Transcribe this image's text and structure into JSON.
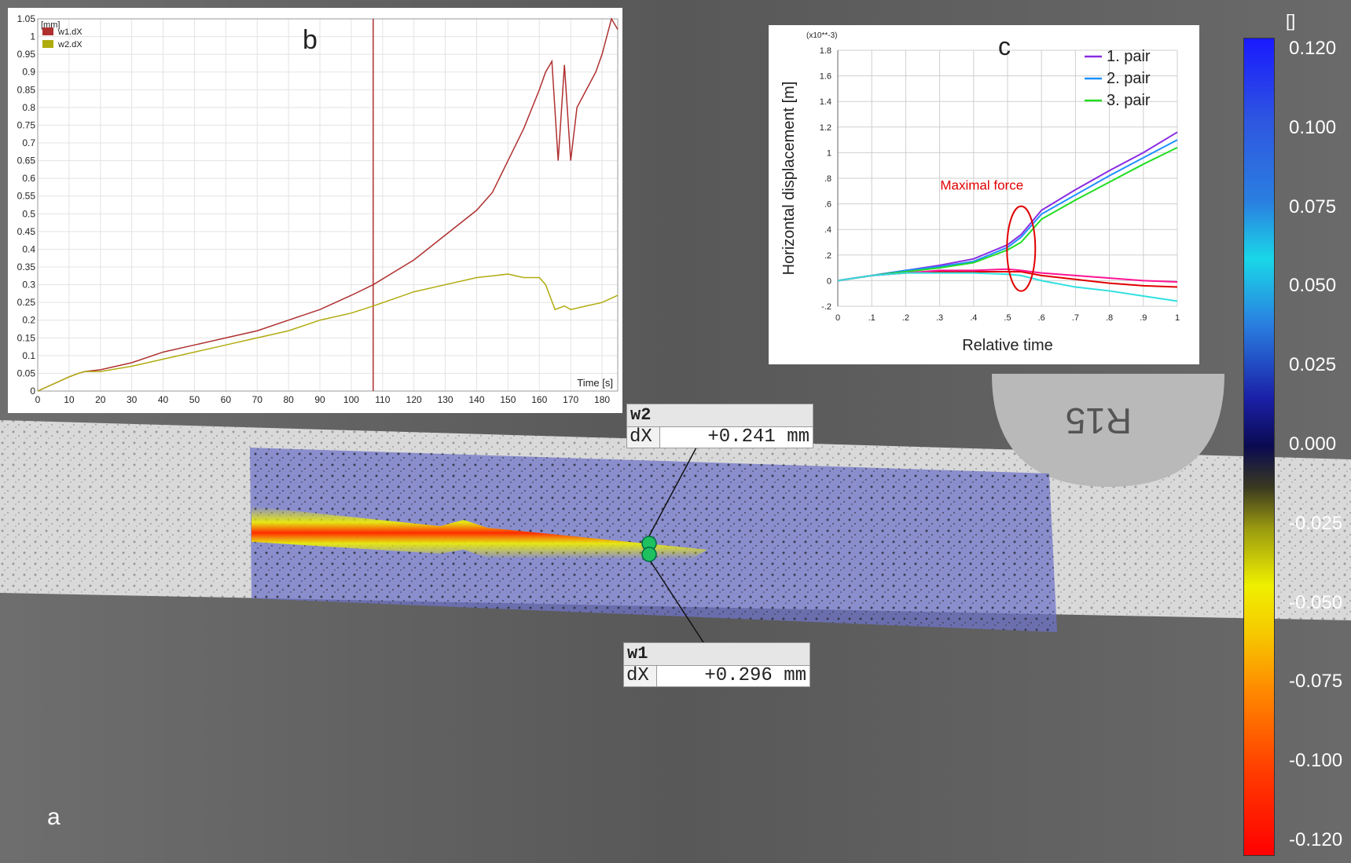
{
  "panel_a": {
    "letter": "a",
    "mark": "R15",
    "colorbar": {
      "unit": "[]",
      "ticks": [
        "0.120",
        "0.100",
        "0.075",
        "0.050",
        "0.025",
        "0.000",
        "-0.025",
        "-0.050",
        "-0.075",
        "-0.100",
        "-0.120"
      ]
    },
    "probes": [
      {
        "name": "w2",
        "quantity": "dX",
        "value": "+0.241 mm"
      },
      {
        "name": "w1",
        "quantity": "dX",
        "value": "+0.296 mm"
      }
    ]
  },
  "chart_data": [
    {
      "panel": "b",
      "type": "line",
      "ylabel": "[mm]",
      "xlabel": "Time [s]",
      "xlim": [
        0,
        185
      ],
      "ylim": [
        0,
        1.05
      ],
      "xticks": [
        "0",
        "10",
        "20",
        "30",
        "40",
        "50",
        "60",
        "70",
        "80",
        "90",
        "100",
        "110",
        "120",
        "130",
        "140",
        "150",
        "160",
        "170",
        "180"
      ],
      "yticks": [
        "0",
        "0.05",
        "0.1",
        "0.15",
        "0.2",
        "0.25",
        "0.3",
        "0.35",
        "0.4",
        "0.45",
        "0.5",
        "0.55",
        "0.6",
        "0.65",
        "0.7",
        "0.75",
        "0.8",
        "0.85",
        "0.9",
        "0.95",
        "1",
        "1.05"
      ],
      "vline_x": 107,
      "grid": true,
      "legend": "top-left",
      "series": [
        {
          "name": "w1.dX",
          "color": "#b03030",
          "x": [
            0,
            10,
            13,
            15,
            20,
            30,
            40,
            50,
            60,
            70,
            80,
            90,
            100,
            107,
            120,
            130,
            140,
            145,
            150,
            155,
            160,
            162,
            164,
            166,
            168,
            170,
            172,
            175,
            178,
            180,
            183,
            185
          ],
          "y": [
            0,
            0.04,
            0.05,
            0.055,
            0.06,
            0.08,
            0.11,
            0.13,
            0.15,
            0.17,
            0.2,
            0.23,
            0.27,
            0.3,
            0.37,
            0.44,
            0.51,
            0.56,
            0.65,
            0.74,
            0.85,
            0.9,
            0.93,
            0.65,
            0.92,
            0.65,
            0.8,
            0.85,
            0.9,
            0.95,
            1.05,
            1.02
          ]
        },
        {
          "name": "w2.dX",
          "color": "#b0ac10",
          "x": [
            0,
            10,
            13,
            15,
            20,
            30,
            40,
            50,
            60,
            70,
            80,
            90,
            100,
            107,
            120,
            130,
            140,
            150,
            155,
            160,
            162,
            165,
            168,
            170,
            175,
            180,
            185
          ],
          "y": [
            0,
            0.04,
            0.05,
            0.055,
            0.055,
            0.07,
            0.09,
            0.11,
            0.13,
            0.15,
            0.17,
            0.2,
            0.22,
            0.24,
            0.28,
            0.3,
            0.32,
            0.33,
            0.32,
            0.32,
            0.3,
            0.23,
            0.24,
            0.23,
            0.24,
            0.25,
            0.27
          ]
        }
      ]
    },
    {
      "panel": "c",
      "type": "line",
      "ylabel": "Horizontal displacement [m]",
      "xlabel": "Relative time",
      "scale_note": "(x10**-3)",
      "xlim": [
        0,
        1
      ],
      "ylim": [
        -0.2,
        1.8
      ],
      "xticks": [
        "0",
        ".1",
        ".2",
        ".3",
        ".4",
        ".5",
        ".6",
        ".7",
        ".8",
        ".9",
        "1"
      ],
      "yticks": [
        "1.8",
        "1.6",
        "1.4",
        "1.2",
        "1",
        ".8",
        ".6",
        ".4",
        ".2",
        "0",
        "-.2"
      ],
      "annotation": "Maximal force",
      "annotation_x": 0.54,
      "grid": true,
      "legend": "top-right",
      "legend_entries": [
        {
          "label": "1. pair",
          "color": "#8a2be2"
        },
        {
          "label": "2. pair",
          "color": "#1e90ff"
        },
        {
          "label": "3. pair",
          "color": "#22dd22"
        }
      ],
      "series": [
        {
          "label": "1. pair",
          "color": "#8a2be2",
          "x": [
            0,
            0.1,
            0.2,
            0.3,
            0.4,
            0.5,
            0.54,
            0.6,
            0.7,
            0.8,
            0.9,
            1
          ],
          "y": [
            0,
            0.04,
            0.08,
            0.12,
            0.17,
            0.28,
            0.36,
            0.55,
            0.71,
            0.86,
            1.0,
            1.16
          ]
        },
        {
          "label": "2. pair",
          "color": "#1e90ff",
          "x": [
            0,
            0.1,
            0.2,
            0.3,
            0.4,
            0.5,
            0.54,
            0.6,
            0.7,
            0.8,
            0.9,
            1
          ],
          "y": [
            0,
            0.04,
            0.08,
            0.11,
            0.15,
            0.26,
            0.34,
            0.52,
            0.67,
            0.82,
            0.96,
            1.1
          ]
        },
        {
          "label": "3. pair",
          "color": "#22dd22",
          "x": [
            0,
            0.1,
            0.2,
            0.3,
            0.4,
            0.5,
            0.54,
            0.6,
            0.7,
            0.8,
            0.9,
            1
          ],
          "y": [
            0,
            0.04,
            0.07,
            0.1,
            0.14,
            0.24,
            0.3,
            0.48,
            0.63,
            0.77,
            0.91,
            1.04
          ]
        },
        {
          "color": "#e00000",
          "x": [
            0,
            0.1,
            0.2,
            0.3,
            0.4,
            0.5,
            0.54,
            0.6,
            0.7,
            0.8,
            0.9,
            1
          ],
          "y": [
            0,
            0.04,
            0.06,
            0.07,
            0.07,
            0.07,
            0.07,
            0.04,
            0.01,
            -0.02,
            -0.04,
            -0.05
          ]
        },
        {
          "color": "#ff1493",
          "x": [
            0,
            0.1,
            0.2,
            0.3,
            0.4,
            0.5,
            0.54,
            0.6,
            0.7,
            0.8,
            0.9,
            1
          ],
          "y": [
            0,
            0.04,
            0.06,
            0.08,
            0.08,
            0.09,
            0.08,
            0.06,
            0.04,
            0.02,
            0.0,
            -0.01
          ]
        },
        {
          "color": "#30e0e0",
          "x": [
            0,
            0.1,
            0.2,
            0.3,
            0.4,
            0.5,
            0.54,
            0.6,
            0.7,
            0.8,
            0.9,
            1
          ],
          "y": [
            0,
            0.04,
            0.06,
            0.06,
            0.06,
            0.05,
            0.04,
            0.0,
            -0.05,
            -0.08,
            -0.12,
            -0.16
          ]
        }
      ]
    }
  ]
}
